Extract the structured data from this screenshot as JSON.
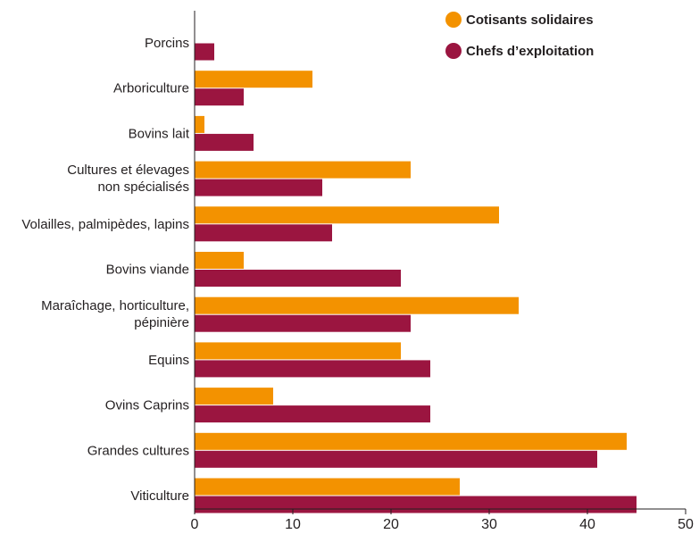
{
  "chart_data": {
    "type": "bar",
    "orientation": "horizontal",
    "categories": [
      "Porcins",
      "Arboriculture",
      "Bovins lait",
      "Cultures et élevages\nnon spécialisés",
      "Volailles, palmipèdes, lapins",
      "Bovins viande",
      "Maraîchage, horticulture,\npépinière",
      "Equins",
      "Ovins Caprins",
      "Grandes cultures",
      "Viticulture"
    ],
    "series": [
      {
        "name": "Cotisants solidaires",
        "color": "#f39200",
        "values": [
          0,
          12,
          1,
          22,
          31,
          5,
          33,
          21,
          8,
          44,
          27
        ]
      },
      {
        "name": "Chefs d’exploitation",
        "color": "#9b1540",
        "values": [
          2,
          5,
          6,
          13,
          14,
          21,
          22,
          24,
          24,
          41,
          45
        ]
      }
    ],
    "xlim": [
      0,
      50
    ],
    "xticks": [
      0,
      10,
      20,
      30,
      40,
      50
    ],
    "title": "",
    "xlabel": "",
    "ylabel": "",
    "legend_position": "top-right",
    "grid": false
  }
}
